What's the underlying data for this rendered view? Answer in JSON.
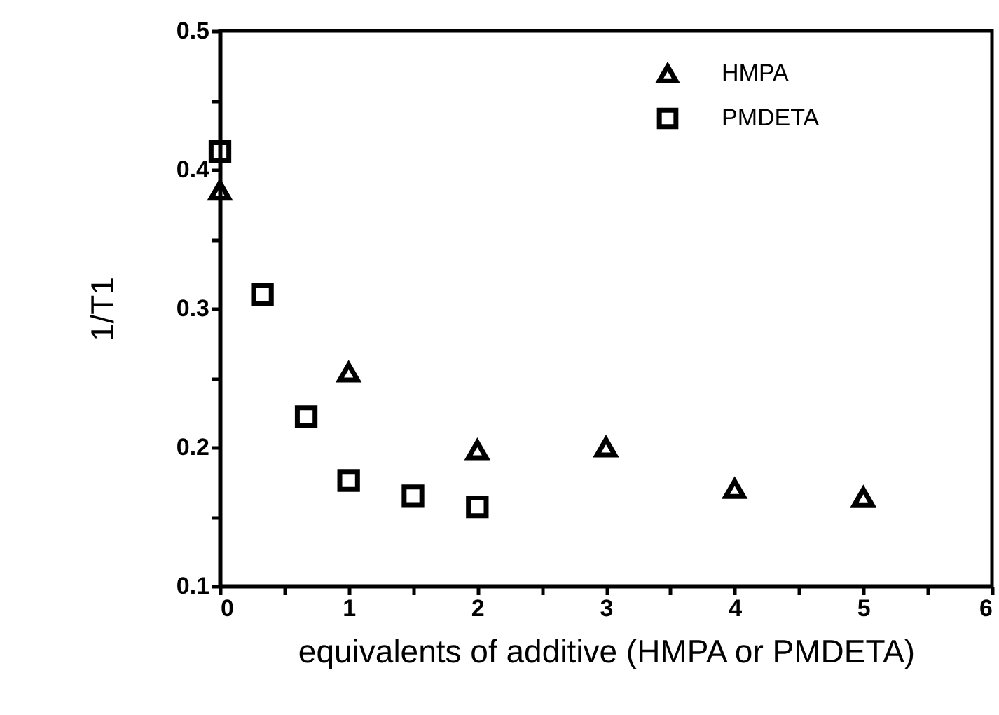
{
  "chart_data": {
    "type": "scatter",
    "xlabel": "equivalents of additive (HMPA or PMDETA)",
    "ylabel": "1/T1",
    "series": [
      {
        "name": "HMPA",
        "color": "#000000",
        "marker": "triangle",
        "x": [
          0,
          1,
          2,
          3,
          4,
          5
        ],
        "values": [
          0.385,
          0.254,
          0.198,
          0.2,
          0.17,
          0.164
        ]
      },
      {
        "name": "PMDETA",
        "color": "#000000",
        "marker": "square",
        "x": [
          0,
          0.33,
          0.67,
          1,
          1.5,
          2
        ],
        "values": [
          0.413,
          0.31,
          0.222,
          0.176,
          0.165,
          0.157
        ]
      }
    ],
    "xlim": [
      0,
      6
    ],
    "xticks": [
      0,
      {
        "value": 0.5,
        "label": null
      },
      1,
      {
        "value": 1.5,
        "label": null
      },
      2,
      {
        "value": 2.5,
        "label": null
      },
      3,
      {
        "value": 3.5,
        "label": null
      },
      4,
      {
        "value": 4.5,
        "label": null
      },
      5,
      {
        "value": 5.5,
        "label": null
      },
      6
    ],
    "ylim": [
      0.1,
      0.5
    ],
    "yticks": [
      0.1,
      {
        "value": 0.15,
        "label": null
      },
      0.2,
      {
        "value": 0.25,
        "label": null
      },
      0.3,
      {
        "value": 0.35,
        "label": null
      },
      0.4,
      {
        "value": 0.45,
        "label": null
      },
      0.5
    ],
    "legend": "top right",
    "grid": false
  }
}
